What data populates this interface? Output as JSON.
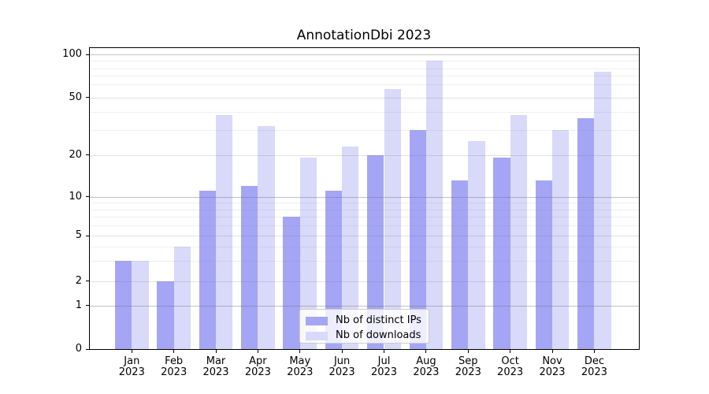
{
  "chart_data": {
    "type": "bar",
    "title": "AnnotationDbi 2023",
    "categories": [
      "Jan",
      "Feb",
      "Mar",
      "Apr",
      "May",
      "Jun",
      "Jul",
      "Aug",
      "Sep",
      "Oct",
      "Nov",
      "Dec"
    ],
    "year_label": "2023",
    "series": [
      {
        "name": "Nb of distinct IPs",
        "color": "#a5a5f5",
        "values": [
          3,
          2,
          11,
          12,
          7,
          11,
          20,
          30,
          13,
          19,
          13,
          36
        ]
      },
      {
        "name": "Nb of downloads",
        "color": "#d9d9f9",
        "values": [
          3,
          4,
          38,
          32,
          19,
          23,
          56,
          90,
          25,
          38,
          30,
          75
        ]
      }
    ],
    "yscale": "asinh",
    "ytick_labels": [
      "0",
      "1",
      "2",
      "5",
      "10",
      "20",
      "50",
      "100"
    ],
    "ylim": [
      0,
      110
    ],
    "grid": "both",
    "legend_position": "lower center"
  }
}
